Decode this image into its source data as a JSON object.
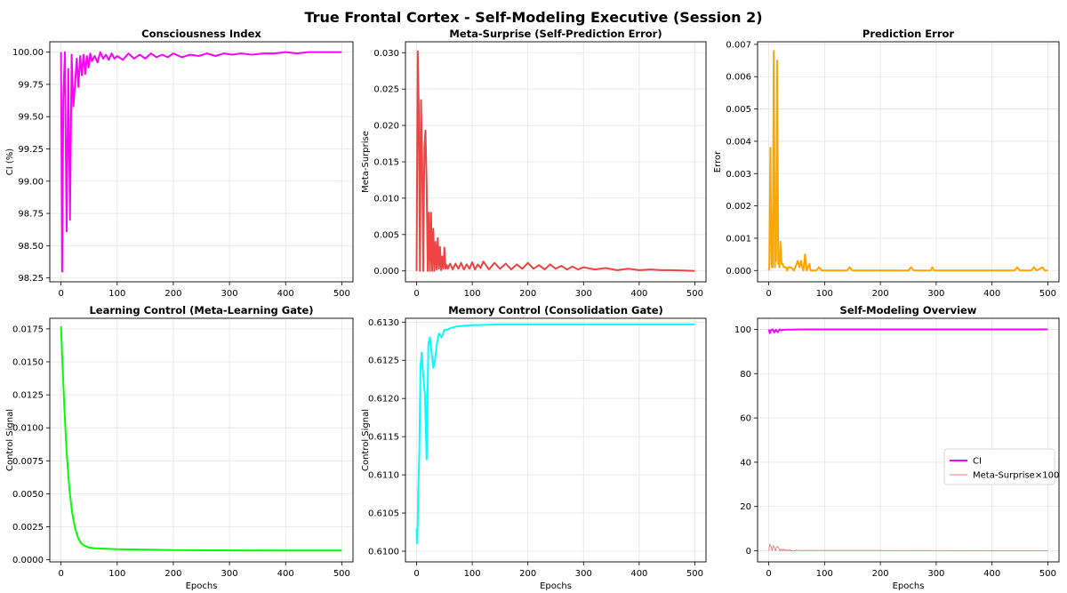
{
  "figure_title": "True Frontal Cortex - Self-Modeling Executive (Session 2)",
  "chart_data": [
    {
      "type": "line",
      "title": "Consciousness Index",
      "xlabel": "",
      "ylabel": "CI (%)",
      "xlim": [
        -20,
        520
      ],
      "ylim": [
        98.22,
        100.08
      ],
      "xticks": [
        "0",
        "100",
        "200",
        "300",
        "400",
        "500"
      ],
      "yticks": [
        "98.25",
        "98.50",
        "98.75",
        "99.00",
        "99.25",
        "99.50",
        "99.75",
        "100.00"
      ],
      "grid": true,
      "series": [
        {
          "name": "CI",
          "color": "#ff00ff",
          "x": [
            0,
            2,
            4,
            7,
            10,
            13,
            16,
            19,
            22,
            25,
            28,
            31,
            34,
            37,
            40,
            43,
            46,
            49,
            52,
            55,
            60,
            65,
            70,
            75,
            80,
            85,
            90,
            95,
            100,
            110,
            120,
            130,
            140,
            150,
            160,
            170,
            180,
            190,
            200,
            215,
            230,
            245,
            260,
            275,
            290,
            305,
            320,
            340,
            360,
            380,
            400,
            420,
            440,
            460,
            480,
            500
          ],
          "y": [
            100.0,
            98.3,
            99.64,
            100.0,
            98.61,
            99.87,
            98.7,
            99.98,
            99.58,
            99.75,
            99.95,
            99.73,
            99.97,
            99.82,
            99.98,
            99.83,
            99.97,
            99.88,
            99.99,
            99.93,
            99.97,
            99.92,
            100.0,
            99.95,
            99.98,
            99.94,
            99.99,
            99.95,
            99.97,
            99.94,
            99.99,
            99.95,
            99.98,
            99.95,
            99.99,
            99.96,
            99.98,
            99.96,
            99.99,
            99.96,
            99.98,
            99.97,
            99.99,
            99.97,
            99.99,
            99.98,
            99.99,
            99.98,
            99.99,
            99.99,
            100.0,
            99.99,
            100.0,
            100.0,
            100.0,
            100.0
          ]
        }
      ]
    },
    {
      "type": "line",
      "title": "Meta-Surprise (Self-Prediction Error)",
      "xlabel": "",
      "ylabel": "Meta-Surprise",
      "xlim": [
        -20,
        520
      ],
      "ylim": [
        -0.0015,
        0.0315
      ],
      "xticks": [
        "0",
        "100",
        "200",
        "300",
        "400",
        "500"
      ],
      "yticks": [
        "0.000",
        "0.005",
        "0.010",
        "0.015",
        "0.020",
        "0.025",
        "0.030"
      ],
      "grid": true,
      "series": [
        {
          "name": "Meta-Surprise",
          "color": "#ee4444",
          "x": [
            0,
            2,
            4,
            6,
            8,
            10,
            12,
            14,
            16,
            18,
            20,
            22,
            24,
            26,
            28,
            30,
            32,
            34,
            36,
            38,
            40,
            42,
            44,
            46,
            48,
            50,
            52,
            54,
            56,
            60,
            65,
            70,
            75,
            80,
            85,
            90,
            95,
            100,
            105,
            110,
            115,
            120,
            130,
            140,
            150,
            160,
            170,
            180,
            190,
            200,
            210,
            220,
            230,
            240,
            250,
            260,
            270,
            280,
            290,
            300,
            320,
            340,
            360,
            380,
            400,
            420,
            440,
            460,
            480,
            500
          ],
          "y": [
            0.0,
            0.0302,
            0.022,
            0.0,
            0.0235,
            0.015,
            0.0,
            0.017,
            0.0193,
            0.012,
            0.0,
            0.008,
            0.0,
            0.008,
            0.0,
            0.0058,
            0.0,
            0.004,
            0.0002,
            0.0045,
            0.0003,
            0.0033,
            0.0001,
            0.002,
            0.0003,
            0.0032,
            0.0003,
            0.0008,
            0.0003,
            0.001,
            0.0002,
            0.001,
            0.0003,
            0.0011,
            0.0002,
            0.0009,
            0.0003,
            0.0012,
            0.0002,
            0.0009,
            0.0004,
            0.0013,
            0.0002,
            0.0011,
            0.0003,
            0.001,
            0.0002,
            0.0009,
            0.0003,
            0.0011,
            0.0003,
            0.0008,
            0.0002,
            0.0009,
            0.0003,
            0.0007,
            0.0002,
            0.0006,
            0.0002,
            0.0005,
            0.0002,
            0.0004,
            0.0001,
            0.0003,
            0.0001,
            0.0002,
            0.0001,
            0.0001,
            5e-05,
            0.0
          ]
        }
      ]
    },
    {
      "type": "line",
      "title": "Prediction Error",
      "xlabel": "",
      "ylabel": "Error",
      "xlim": [
        -20,
        520
      ],
      "ylim": [
        -0.00035,
        0.00708
      ],
      "xticks": [
        "0",
        "100",
        "200",
        "300",
        "400",
        "500"
      ],
      "yticks": [
        "0.000",
        "0.001",
        "0.002",
        "0.003",
        "0.004",
        "0.005",
        "0.006",
        "0.007"
      ],
      "grid": true,
      "series": [
        {
          "name": "Prediction Error",
          "color": "#ffa500",
          "x": [
            0,
            1,
            3,
            5,
            6,
            7,
            9,
            11,
            12,
            13,
            15,
            17,
            18,
            19,
            21,
            23,
            25,
            27,
            29,
            31,
            33,
            35,
            40,
            45,
            50,
            52,
            55,
            58,
            60,
            62,
            65,
            68,
            70,
            73,
            75,
            80,
            85,
            90,
            95,
            100,
            120,
            140,
            145,
            150,
            200,
            250,
            255,
            260,
            290,
            293,
            296,
            300,
            350,
            400,
            440,
            445,
            450,
            470,
            475,
            480,
            490,
            495,
            500
          ],
          "y": [
            0.0,
            0.0001,
            0.0038,
            0.0002,
            0.0001,
            0.0001,
            0.0068,
            0.0001,
            0.0009,
            0.0003,
            0.0065,
            0.0002,
            0.0004,
            0.0001,
            0.0009,
            0.0002,
            0.0002,
            0.0001,
            0.0001,
            0.0001,
            0.0,
            0.0001,
            0.0001,
            0.0,
            0.0002,
            0.0003,
            0.0001,
            0.0003,
            0.0001,
            0.0,
            0.0005,
            0.0,
            0.0001,
            0.0002,
            0.0,
            0.0,
            0.0,
            0.0001,
            0.0,
            0.0,
            0.0,
            0.0,
            0.0001,
            0.0,
            0.0,
            0.0,
            0.0001,
            0.0,
            0.0,
            0.0001,
            0.0,
            0.0,
            0.0,
            0.0,
            0.0,
            0.0001,
            0.0,
            0.0,
            0.0001,
            0.0,
            0.0001,
            0.0,
            0.0
          ]
        }
      ]
    },
    {
      "type": "line",
      "title": "Learning Control (Meta-Learning Gate)",
      "xlabel": "Epochs",
      "ylabel": "Control Signal",
      "xlim": [
        -20,
        520
      ],
      "ylim": [
        -0.00016,
        0.0183
      ],
      "xticks": [
        "0",
        "100",
        "200",
        "300",
        "400",
        "500"
      ],
      "yticks": [
        "0.0000",
        "0.0025",
        "0.0050",
        "0.0075",
        "0.0100",
        "0.0125",
        "0.0150",
        "0.0175"
      ],
      "grid": true,
      "series": [
        {
          "name": "Learning Control",
          "color": "#00ff00",
          "x": [
            0,
            3,
            6,
            10,
            15,
            20,
            25,
            30,
            35,
            40,
            50,
            60,
            80,
            100,
            150,
            200,
            300,
            400,
            500
          ],
          "y": [
            0.0177,
            0.0145,
            0.0115,
            0.0082,
            0.0053,
            0.0035,
            0.0024,
            0.0017,
            0.0013,
            0.0011,
            0.00092,
            0.00087,
            0.00083,
            0.0008,
            0.00076,
            0.00073,
            0.00071,
            0.0007,
            0.0007
          ]
        }
      ]
    },
    {
      "type": "line",
      "title": "Memory Control (Consolidation Gate)",
      "xlabel": "Epochs",
      "ylabel": "Control Signal",
      "xlim": [
        -20,
        520
      ],
      "ylim": [
        0.60986,
        0.61305
      ],
      "xticks": [
        "0",
        "100",
        "200",
        "300",
        "400",
        "500"
      ],
      "yticks": [
        "0.6100",
        "0.6105",
        "0.6110",
        "0.6115",
        "0.6120",
        "0.6125",
        "0.6130"
      ],
      "grid": true,
      "series": [
        {
          "name": "Memory Control",
          "color": "#00ffff",
          "x": [
            0,
            1,
            2,
            3,
            5,
            7,
            9,
            12,
            15,
            18,
            21,
            24,
            27,
            30,
            33,
            36,
            40,
            45,
            50,
            55,
            60,
            70,
            80,
            100,
            150,
            200,
            300,
            400,
            500
          ],
          "y": [
            0.6103,
            0.6101,
            0.6104,
            0.6108,
            0.6113,
            0.6124,
            0.6126,
            0.6123,
            0.61205,
            0.6112,
            0.6127,
            0.6128,
            0.6126,
            0.6124,
            0.6125,
            0.6127,
            0.61285,
            0.6128,
            0.6129,
            0.6129,
            0.61292,
            0.61294,
            0.61295,
            0.61296,
            0.61297,
            0.61297,
            0.61297,
            0.61297,
            0.61297
          ]
        }
      ]
    },
    {
      "type": "line",
      "title": "Self-Modeling Overview",
      "xlabel": "Epochs",
      "ylabel": "",
      "xlim": [
        -20,
        520
      ],
      "ylim": [
        -5,
        105
      ],
      "xticks": [
        "0",
        "100",
        "200",
        "300",
        "400",
        "500"
      ],
      "yticks": [
        "0",
        "20",
        "40",
        "60",
        "80",
        "100"
      ],
      "grid": true,
      "legend": {
        "placement": "center-right",
        "entries": [
          "CI",
          "Meta-Surprise×100"
        ]
      },
      "series": [
        {
          "name": "CI",
          "color": "#ff00ff",
          "x": [
            0,
            2,
            4,
            7,
            10,
            13,
            16,
            19,
            22,
            25,
            30,
            40,
            50,
            60,
            80,
            100,
            200,
            300,
            400,
            500
          ],
          "y": [
            100.0,
            98.3,
            99.64,
            100.0,
            98.61,
            99.87,
            98.7,
            99.98,
            99.58,
            99.75,
            99.9,
            99.9,
            99.95,
            99.97,
            99.98,
            99.98,
            99.99,
            99.99,
            100.0,
            100.0
          ]
        },
        {
          "name": "Meta-Surprise×100",
          "color": "#f08080",
          "x": [
            0,
            2,
            4,
            6,
            8,
            10,
            12,
            14,
            16,
            18,
            20,
            22,
            24,
            26,
            28,
            30,
            32,
            34,
            36,
            38,
            40,
            44,
            48,
            50,
            54,
            60,
            70,
            80,
            90,
            100,
            120,
            150,
            200,
            300,
            400,
            500
          ],
          "y": [
            0.0,
            3.02,
            2.2,
            0.0,
            2.35,
            1.5,
            0.0,
            1.7,
            1.93,
            1.2,
            0.0,
            0.8,
            0.0,
            0.8,
            0.0,
            0.58,
            0.0,
            0.4,
            0.02,
            0.45,
            0.03,
            0.01,
            0.03,
            0.32,
            0.08,
            0.1,
            0.1,
            0.11,
            0.09,
            0.12,
            0.13,
            0.1,
            0.11,
            0.05,
            0.02,
            0.0
          ]
        }
      ]
    }
  ]
}
